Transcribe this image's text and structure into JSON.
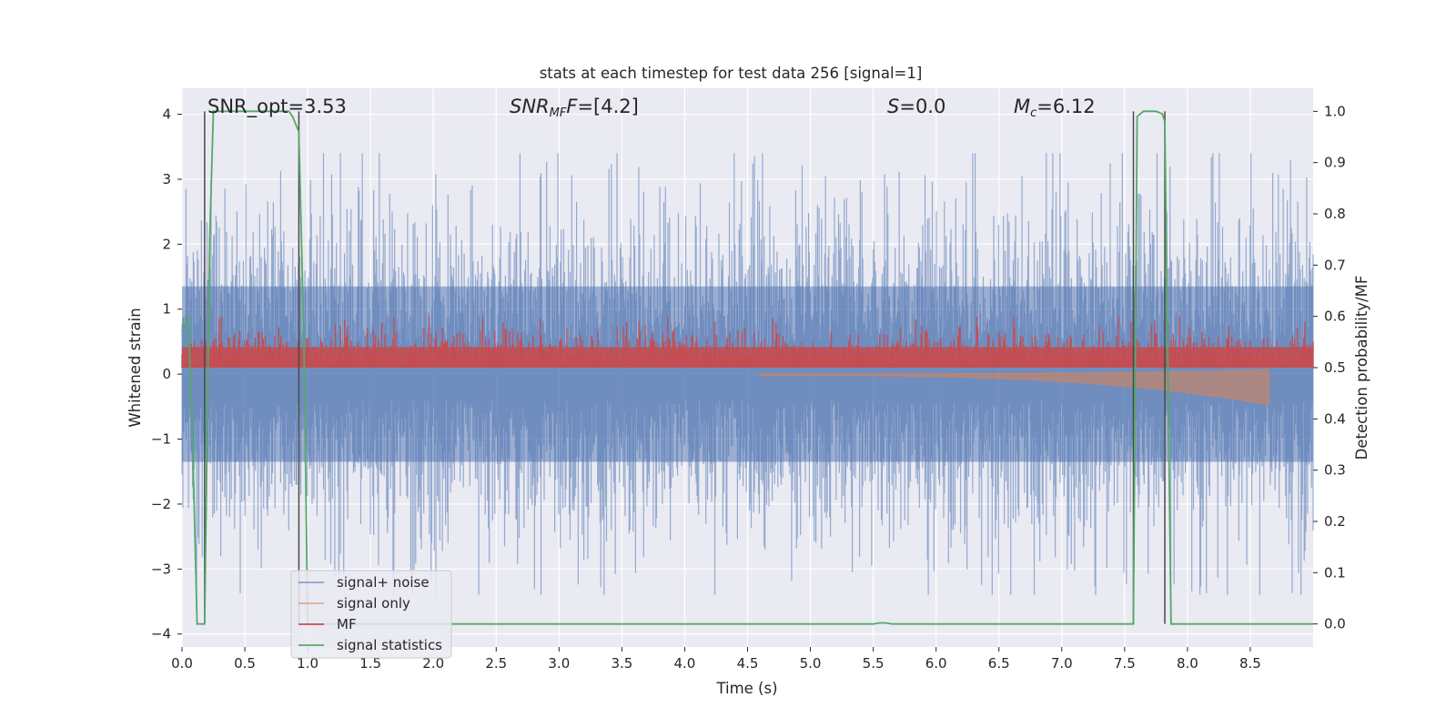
{
  "chart_data": {
    "type": "line",
    "title": "stats at each timestep for test data 256 [signal=1]",
    "xlabel": "Time (s)",
    "ylabel": "Whitened strain",
    "ylabel_right": "Detection probability/MF",
    "xlim": [
      0.0,
      9.0
    ],
    "ylim": [
      -4.2,
      4.4
    ],
    "ylim_right": [
      -0.045,
      1.045
    ],
    "xticks": [
      0.0,
      0.5,
      1.0,
      1.5,
      2.0,
      2.5,
      3.0,
      3.5,
      4.0,
      4.5,
      5.0,
      5.5,
      6.0,
      6.5,
      7.0,
      7.5,
      8.0,
      8.5
    ],
    "xtick_labels": [
      "0.0",
      "0.5",
      "1.0",
      "1.5",
      "2.0",
      "2.5",
      "3.0",
      "3.5",
      "4.0",
      "4.5",
      "5.0",
      "5.5",
      "6.0",
      "6.5",
      "7.0",
      "7.5",
      "8.0",
      "8.5"
    ],
    "yticks": [
      4,
      3,
      2,
      1,
      0,
      -1,
      -2,
      -3,
      -4
    ],
    "ytick_labels": [
      "4",
      "3",
      "2",
      "1",
      "0",
      "−1",
      "−2",
      "−3",
      "−4"
    ],
    "yticks_right": [
      1.0,
      0.9,
      0.8,
      0.7,
      0.6,
      0.5,
      0.4,
      0.3,
      0.2,
      0.1,
      0.0
    ],
    "ytick_labels_right": [
      "1.0",
      "0.9",
      "0.8",
      "0.7",
      "0.6",
      "0.5",
      "0.4",
      "0.3",
      "0.2",
      "0.1",
      "0.0"
    ],
    "grid": true,
    "legend_position": "lower-left",
    "annotations": {
      "snr_opt": "SNR_opt=3.53",
      "snr_mf_sym": "SNR",
      "snr_mf_sub": "MF",
      "snr_mf_value": "=[4.2]",
      "s_sym": "S",
      "s_value": "=0.0",
      "mc_sym": "M",
      "mc_sub": "c",
      "mc_value": "=6.12"
    },
    "vertical_lines": [
      0.18,
      0.93,
      7.57,
      7.82
    ],
    "series": [
      {
        "name": "signal+ noise",
        "color": "#4c72b0",
        "axis": "left",
        "style": "noise",
        "envelope_typical": 1.4,
        "envelope_peak": 3.4
      },
      {
        "name": "signal only",
        "color": "#dd8452",
        "axis": "left",
        "style": "chirp",
        "x_start": 4.6,
        "x_end": 8.65,
        "amplitude_end": 0.45
      },
      {
        "name": "MF",
        "color": "#c44e52",
        "axis": "right",
        "style": "mf_band",
        "base": 0.5,
        "typical_top": 0.57,
        "peak": 0.6
      },
      {
        "name": "signal statistics",
        "color": "#55a868",
        "axis": "right",
        "style": "line",
        "x": [
          0.0,
          0.05,
          0.08,
          0.12,
          0.18,
          0.22,
          0.25,
          0.5,
          0.85,
          0.88,
          0.93,
          0.97,
          1.0,
          1.5,
          5.5,
          5.55,
          5.6,
          5.65,
          7.0,
          7.57,
          7.6,
          7.65,
          7.7,
          7.75,
          7.8,
          7.82,
          7.87,
          7.9,
          8.5,
          9.0
        ],
        "y": [
          0.57,
          0.6,
          0.4,
          0.0,
          0.0,
          0.75,
          1.0,
          1.0,
          1.0,
          0.99,
          0.96,
          0.55,
          0.0,
          0.0,
          0.0,
          0.002,
          0.002,
          0.0,
          0.0,
          0.0,
          0.99,
          1.0,
          1.0,
          1.0,
          0.995,
          0.98,
          0.0,
          0.0,
          0.0,
          0.0
        ]
      }
    ]
  }
}
